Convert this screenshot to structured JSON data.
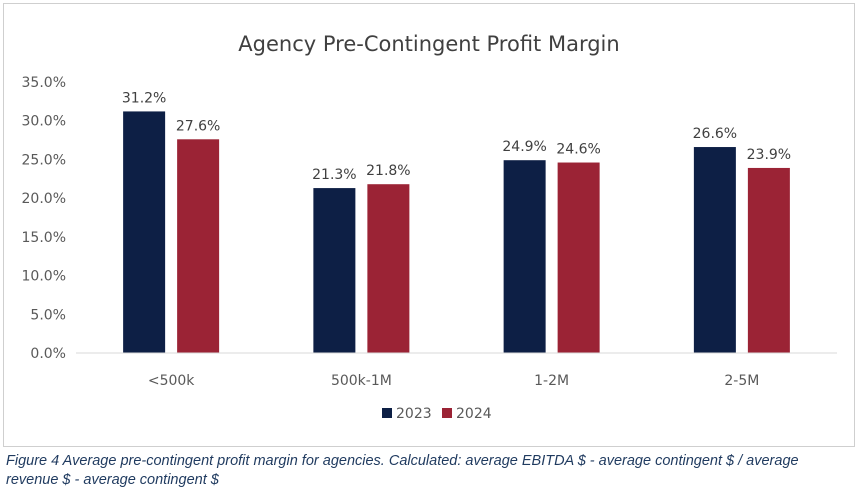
{
  "caption": "Figure 4 Average pre-contingent profit margin for agencies. Calculated: average EBITDA $ - average contingent $ / average revenue $ - average contingent $",
  "chart_data": {
    "type": "bar",
    "title": "Agency Pre-Contingent Profit Margin",
    "categories": [
      "<500k",
      "500k-1M",
      "1-2M",
      "2-5M"
    ],
    "series": [
      {
        "name": "2023",
        "color": "#0d1f45",
        "values": [
          31.2,
          21.3,
          24.9,
          26.6
        ],
        "labels": [
          "31.2%",
          "21.3%",
          "24.9%",
          "26.6%"
        ]
      },
      {
        "name": "2024",
        "color": "#9b2335",
        "values": [
          27.6,
          21.8,
          24.6,
          23.9
        ],
        "labels": [
          "27.6%",
          "21.8%",
          "24.6%",
          "23.9%"
        ]
      }
    ],
    "ylim": [
      0,
      35
    ],
    "yticks": [
      "0.0%",
      "5.0%",
      "10.0%",
      "15.0%",
      "20.0%",
      "25.0%",
      "30.0%",
      "35.0%"
    ],
    "grid": false,
    "legend": "bottom"
  }
}
